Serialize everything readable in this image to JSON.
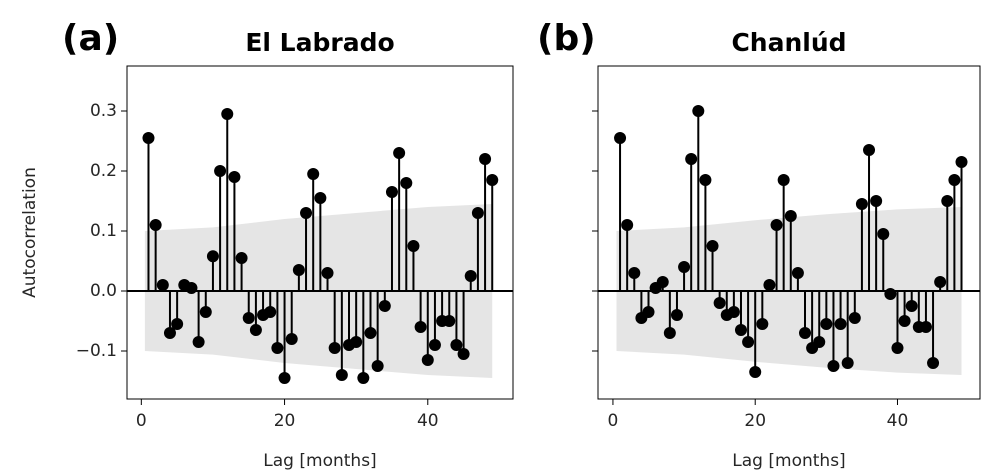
{
  "chart_data": [
    {
      "type": "stem",
      "panel_label": "(a)",
      "title": "El Labrado",
      "x_label": "Lag [months]",
      "y_label": "Autocorrelation",
      "color": "#000000",
      "band_color": "#e5e5e5",
      "show_ytick_labels": true,
      "x": [
        1,
        2,
        3,
        4,
        5,
        6,
        7,
        8,
        9,
        10,
        11,
        12,
        13,
        14,
        15,
        16,
        17,
        18,
        19,
        20,
        21,
        22,
        23,
        24,
        25,
        26,
        27,
        28,
        29,
        30,
        31,
        32,
        33,
        34,
        35,
        36,
        37,
        38,
        39,
        40,
        41,
        42,
        43,
        44,
        45,
        46,
        47,
        48,
        49
      ],
      "values": [
        0.255,
        0.11,
        0.01,
        -0.07,
        -0.055,
        0.01,
        0.005,
        -0.085,
        -0.035,
        0.058,
        0.2,
        0.295,
        0.19,
        0.055,
        -0.045,
        -0.065,
        -0.04,
        -0.035,
        -0.095,
        -0.145,
        -0.08,
        0.035,
        0.13,
        0.195,
        0.155,
        0.03,
        -0.095,
        -0.14,
        -0.09,
        -0.085,
        -0.145,
        -0.07,
        -0.125,
        -0.025,
        0.165,
        0.23,
        0.18,
        0.075,
        -0.06,
        -0.115,
        -0.09,
        -0.05,
        -0.05,
        -0.09,
        -0.105,
        0.025,
        0.13,
        0.22,
        0.185
      ],
      "band": {
        "x": [
          0.5,
          10,
          20,
          30,
          40,
          49
        ],
        "upper": [
          0.1,
          0.106,
          0.12,
          0.13,
          0.14,
          0.145
        ],
        "lower": [
          -0.1,
          -0.106,
          -0.12,
          -0.13,
          -0.14,
          -0.145
        ]
      },
      "xlim": [
        -2,
        51.9
      ],
      "ylim": [
        -0.18,
        0.375
      ],
      "xticks": [
        0,
        20,
        40
      ],
      "yticks": [
        {
          "value": -0.1,
          "label": "−0.1"
        },
        {
          "value": 0,
          "label": "0.0"
        },
        0.1,
        0.2,
        0.3
      ]
    },
    {
      "type": "stem",
      "panel_label": "(b)",
      "title": "Chanlúd",
      "x_label": "Lag [months]",
      "color": "#000000",
      "band_color": "#e5e5e5",
      "show_ytick_labels": false,
      "x": [
        1,
        2,
        3,
        4,
        5,
        6,
        7,
        8,
        9,
        10,
        11,
        12,
        13,
        14,
        15,
        16,
        17,
        18,
        19,
        20,
        21,
        22,
        23,
        24,
        25,
        26,
        27,
        28,
        29,
        30,
        31,
        32,
        33,
        34,
        35,
        36,
        37,
        38,
        39,
        40,
        41,
        42,
        43,
        44,
        45,
        46,
        47,
        48,
        49
      ],
      "values": [
        0.255,
        0.11,
        0.03,
        -0.045,
        -0.035,
        0.005,
        0.015,
        -0.07,
        -0.04,
        0.04,
        0.22,
        0.3,
        0.185,
        0.075,
        -0.02,
        -0.04,
        -0.035,
        -0.065,
        -0.085,
        -0.135,
        -0.055,
        0.01,
        0.11,
        0.185,
        0.125,
        0.03,
        -0.07,
        -0.095,
        -0.085,
        -0.055,
        -0.125,
        -0.055,
        -0.12,
        -0.045,
        0.145,
        0.235,
        0.15,
        0.095,
        -0.005,
        -0.095,
        -0.05,
        -0.025,
        -0.06,
        -0.06,
        -0.12,
        0.015,
        0.15,
        0.185,
        0.215
      ],
      "band": {
        "x": [
          0.5,
          10,
          20,
          30,
          40,
          49
        ],
        "upper": [
          0.1,
          0.106,
          0.118,
          0.128,
          0.136,
          0.14
        ],
        "lower": [
          -0.1,
          -0.106,
          -0.118,
          -0.128,
          -0.136,
          -0.14
        ]
      },
      "xlim": [
        -2.1,
        51.6
      ],
      "ylim": [
        -0.18,
        0.375
      ],
      "xticks": [
        0,
        20,
        40
      ],
      "yticks": [
        -0.1,
        0,
        0.1,
        0.2,
        0.3
      ]
    }
  ]
}
